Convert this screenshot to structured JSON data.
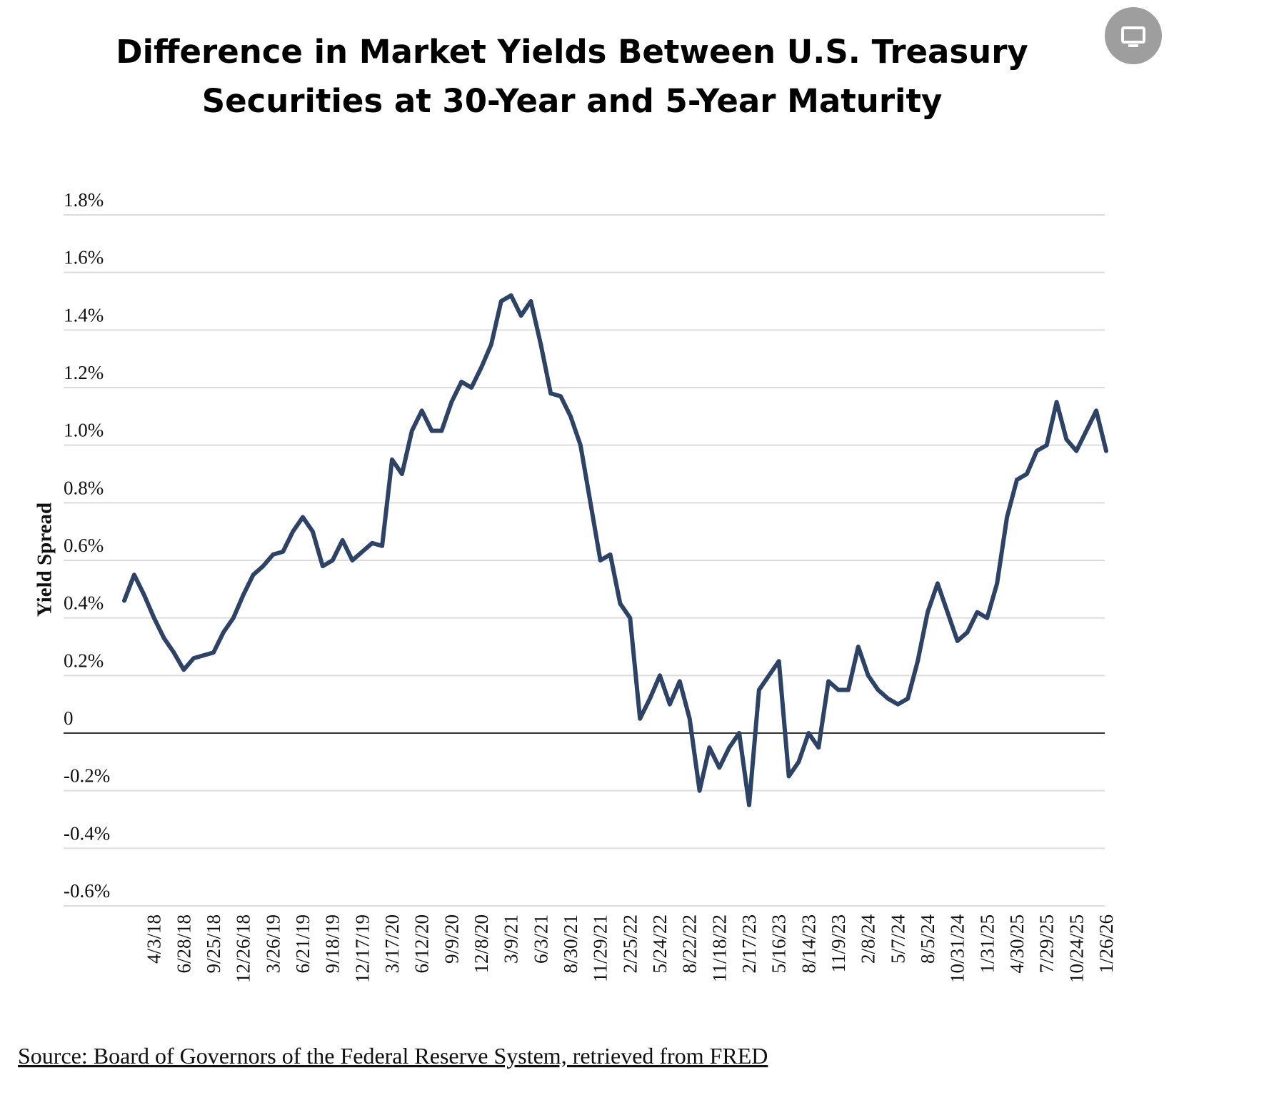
{
  "chart_data": {
    "type": "line",
    "title_lines": [
      "Difference in Market Yields Between U.S. Treasury",
      "Securities at 30-Year and 5-Year Maturity"
    ],
    "ylabel": "Yield Spread",
    "source": "Source: Board of Governors of the Federal Reserve System, retrieved from FRED",
    "color": "#2c4266",
    "grid": true,
    "ylim": [
      -0.6,
      1.8
    ],
    "yticks": [
      {
        "value": -0.6,
        "label": "-0.6%"
      },
      {
        "value": -0.4,
        "label": "-0.4%"
      },
      {
        "value": -0.2,
        "label": "-0.2%"
      },
      0,
      {
        "value": 0.2,
        "label": "0.2%"
      },
      {
        "value": 0.4,
        "label": "0.4%"
      },
      {
        "value": 0.6,
        "label": "0.6%"
      },
      {
        "value": 0.8,
        "label": "0.8%"
      },
      {
        "value": 1.0,
        "label": "1.0%"
      },
      {
        "value": 1.2,
        "label": "1.2%"
      },
      {
        "value": 1.4,
        "label": "1.4%"
      },
      {
        "value": 1.6,
        "label": "1.6%"
      },
      {
        "value": 1.8,
        "label": "1.8%"
      }
    ],
    "categories": [
      null,
      null,
      null,
      "4/3/18",
      null,
      null,
      "6/28/18",
      null,
      null,
      "9/25/18",
      null,
      null,
      "12/26/18",
      null,
      null,
      "3/26/19",
      null,
      null,
      "6/21/19",
      null,
      null,
      "9/18/19",
      null,
      null,
      "12/17/19",
      null,
      null,
      "3/17/20",
      null,
      null,
      "6/12/20",
      null,
      null,
      "9/9/20",
      null,
      null,
      "12/8/20",
      null,
      null,
      "3/9/21",
      null,
      null,
      "6/3/21",
      null,
      null,
      "8/30/21",
      null,
      null,
      "11/29/21",
      null,
      null,
      "2/25/22",
      null,
      null,
      "5/24/22",
      null,
      null,
      "8/22/22",
      null,
      null,
      "11/18/22",
      null,
      null,
      "2/17/23",
      null,
      null,
      "5/16/23",
      null,
      null,
      "8/14/23",
      null,
      null,
      "11/9/23",
      null,
      null,
      "2/8/24",
      null,
      null,
      "5/7/24",
      null,
      null,
      "8/5/24",
      null,
      null,
      "10/31/24",
      null,
      null,
      "1/31/25",
      null,
      null,
      "4/30/25",
      null,
      null,
      "7/29/25",
      null,
      null,
      "10/24/25",
      null,
      null,
      "1/26/26"
    ],
    "values": [
      0.46,
      0.55,
      0.48,
      0.4,
      0.33,
      0.28,
      0.22,
      0.26,
      0.27,
      0.28,
      0.35,
      0.4,
      0.48,
      0.55,
      0.58,
      0.62,
      0.63,
      0.7,
      0.75,
      0.7,
      0.58,
      0.6,
      0.67,
      0.6,
      0.63,
      0.66,
      0.65,
      0.95,
      0.9,
      1.05,
      1.12,
      1.05,
      1.05,
      1.15,
      1.22,
      1.2,
      1.27,
      1.35,
      1.5,
      1.52,
      1.45,
      1.5,
      1.35,
      1.18,
      1.17,
      1.1,
      1.0,
      0.8,
      0.6,
      0.62,
      0.45,
      0.4,
      0.05,
      0.12,
      0.2,
      0.1,
      0.18,
      0.05,
      -0.2,
      -0.05,
      -0.12,
      -0.05,
      0.0,
      -0.25,
      0.15,
      0.2,
      0.25,
      -0.15,
      -0.1,
      0.0,
      -0.05,
      0.18,
      0.15,
      0.15,
      0.3,
      0.2,
      0.15,
      0.12,
      0.1,
      0.12,
      0.25,
      0.42,
      0.52,
      0.42,
      0.32,
      0.35,
      0.42,
      0.4,
      0.52,
      0.75,
      0.88,
      0.9,
      0.98,
      1.0,
      1.15,
      1.02,
      0.98,
      1.05,
      1.12,
      0.98
    ]
  }
}
